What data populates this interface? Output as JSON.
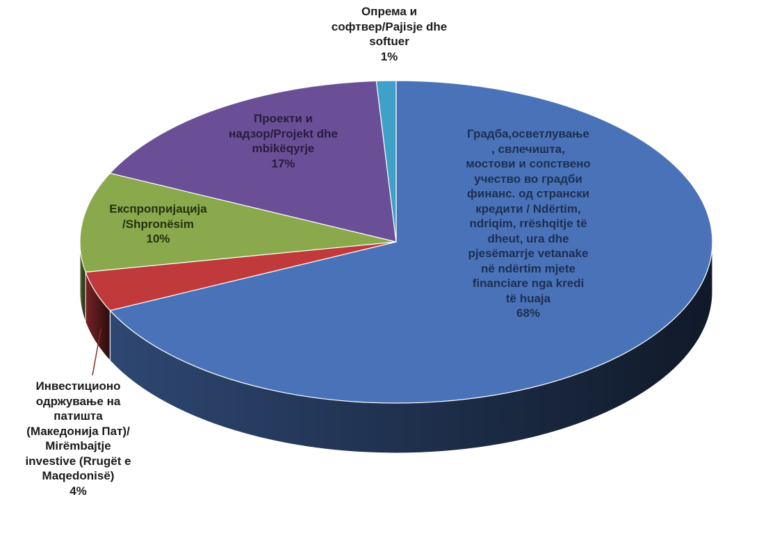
{
  "chart_data": {
    "type": "pie",
    "style": "3d",
    "title": "",
    "legend": "none",
    "start_angle_deg": 90,
    "direction": "clockwise",
    "slices": [
      {
        "label_lines": [
          "Градба,осветлување",
          ", свлечишта,",
          "мостови и сопствено",
          "учество во градби",
          "финанс. од странски",
          "кредити / Ndërtim,",
          "ndriqim, rrëshqitje të",
          "dheut, ura dhe",
          "pjesëmarrje vetanake",
          "në ndërtim mjete",
          "financiare nga kredi",
          "të huaja"
        ],
        "percent_label": "68%",
        "value": 68,
        "color": "#4a72b8",
        "text_color": "#1c2f52"
      },
      {
        "label_lines": [
          "Инвестиционо",
          "одржување на",
          "патишта",
          "(Македонија Пат)/",
          "Mirëmbajtje",
          "investive (Rrugët e",
          "Maqedonisë)"
        ],
        "percent_label": "4%",
        "value": 4,
        "color": "#c0393b",
        "text_color": "#1a1a1a"
      },
      {
        "label_lines": [
          "Експропријација",
          "/Shpronësim"
        ],
        "percent_label": "10%",
        "value": 10,
        "color": "#8aa94c",
        "text_color": "#24300f"
      },
      {
        "label_lines": [
          "Проекти и",
          "надзор/Projekt dhe",
          "mbikëqyrje"
        ],
        "percent_label": "17%",
        "value": 17,
        "color": "#6a4f96",
        "text_color": "#2a1b40"
      },
      {
        "label_lines": [
          "Опрема и",
          "софтвер/Pajisje dhe",
          "softuer"
        ],
        "percent_label": "1%",
        "value": 1,
        "color": "#3fa0c8",
        "text_color": "#1a1a1a"
      }
    ]
  }
}
